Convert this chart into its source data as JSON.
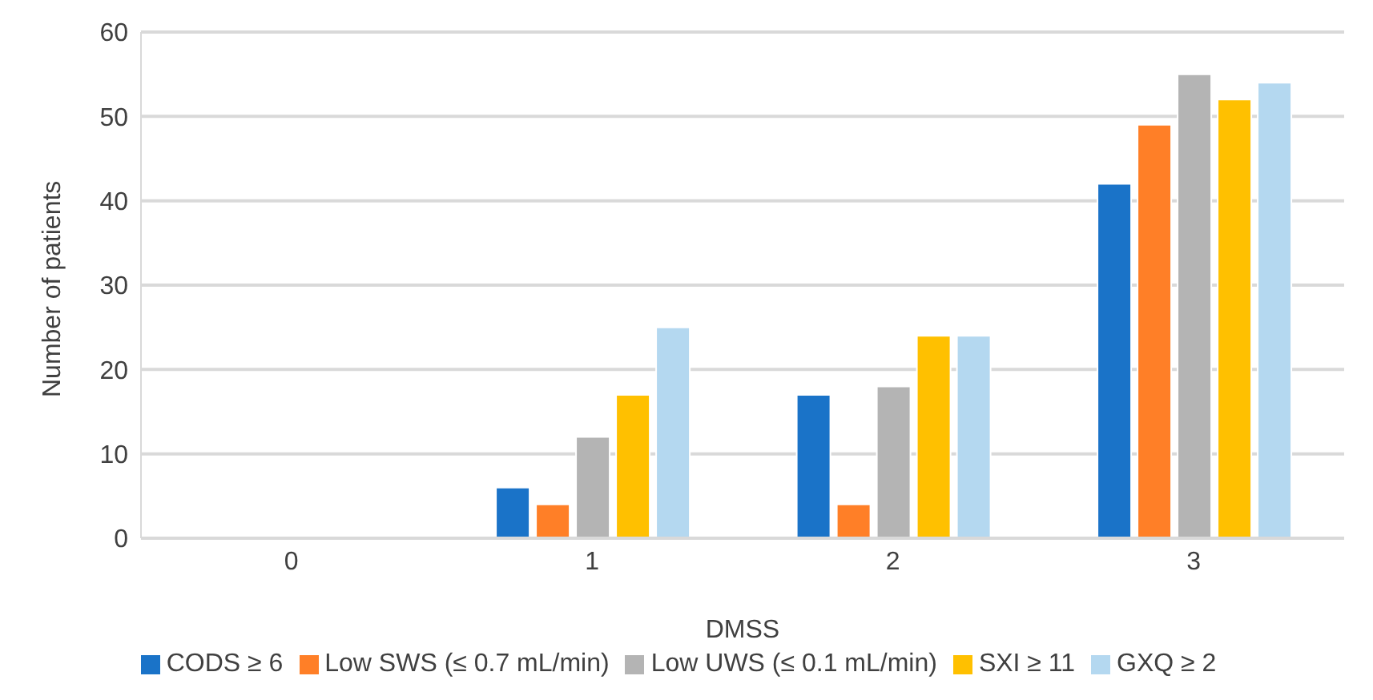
{
  "chart_data": {
    "type": "bar",
    "xlabel": "DMSS",
    "ylabel": "Number of patients",
    "categories": [
      "0",
      "1",
      "2",
      "3"
    ],
    "series": [
      {
        "name": "CODS ≥ 6",
        "color": "#1a73c8",
        "values": [
          0,
          6,
          17,
          42
        ]
      },
      {
        "name": "Low SWS (≤ 0.7 mL/min)",
        "color": "#ff7f27",
        "values": [
          0,
          4,
          4,
          49
        ]
      },
      {
        "name": "Low UWS (≤ 0.1 mL/min)",
        "color": "#b4b4b4",
        "values": [
          0,
          12,
          18,
          55
        ]
      },
      {
        "name": "SXI ≥ 11",
        "color": "#ffc000",
        "values": [
          0,
          17,
          24,
          52
        ]
      },
      {
        "name": "GXQ ≥ 2",
        "color": "#b4d8f0",
        "values": [
          0,
          25,
          24,
          54
        ]
      }
    ],
    "ylim": [
      0,
      60
    ],
    "yticks": [
      0,
      10,
      20,
      30,
      40,
      50,
      60
    ],
    "grid": "y",
    "legend": "bottom"
  }
}
